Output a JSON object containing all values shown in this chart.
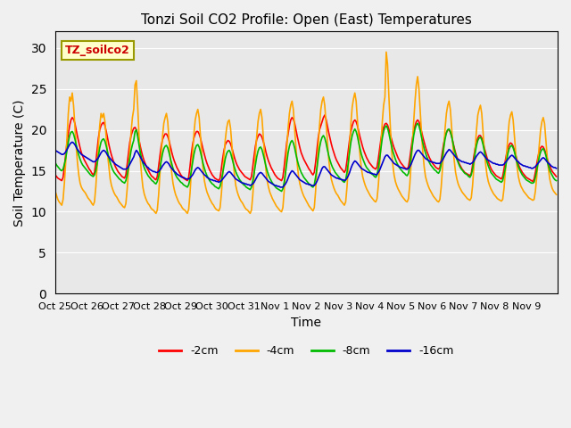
{
  "title": "Tonzi Soil CO2 Profile: Open (East) Temperatures",
  "ylabel": "Soil Temperature (C)",
  "xlabel": "Time",
  "annotation": "TZ_soilco2",
  "ylim": [
    0,
    32
  ],
  "yticks": [
    0,
    5,
    10,
    15,
    20,
    25,
    30
  ],
  "plot_bg_color": "#e8e8e8",
  "fig_bg_color": "#f0f0f0",
  "colors": {
    "-2cm": "#ff0000",
    "-4cm": "#ffa500",
    "-8cm": "#00bb00",
    "-16cm": "#0000cc"
  },
  "legend_labels": [
    "-2cm",
    "-4cm",
    "-8cm",
    "-16cm"
  ],
  "xtick_labels": [
    "Oct 25",
    "Oct 26",
    "Oct 27",
    "Oct 28",
    "Oct 29",
    "Oct 30",
    "Oct 31",
    "Nov 1",
    "Nov 2",
    "Nov 3",
    "Nov 4",
    "Nov 5",
    "Nov 6",
    "Nov 7",
    "Nov 8",
    "Nov 9"
  ],
  "num_points_per_day": 24,
  "days": 16,
  "series": {
    "neg2cm": [
      14.5,
      14.3,
      14.1,
      14.0,
      13.9,
      13.8,
      14.2,
      15.5,
      17.0,
      18.5,
      19.5,
      20.5,
      21.2,
      21.5,
      21.3,
      20.8,
      20.0,
      19.2,
      18.5,
      17.8,
      17.2,
      16.8,
      16.4,
      16.1,
      15.8,
      15.5,
      15.2,
      15.0,
      14.7,
      14.5,
      14.8,
      16.0,
      17.5,
      19.0,
      20.0,
      20.5,
      20.8,
      20.9,
      20.5,
      19.8,
      19.0,
      18.2,
      17.5,
      16.9,
      16.4,
      15.9,
      15.5,
      15.2,
      14.9,
      14.7,
      14.5,
      14.3,
      14.2,
      14.1,
      14.5,
      15.8,
      17.2,
      18.5,
      19.3,
      19.8,
      20.2,
      20.3,
      20.0,
      19.5,
      18.8,
      18.0,
      17.3,
      16.7,
      16.2,
      15.8,
      15.4,
      15.1,
      14.8,
      14.5,
      14.3,
      14.2,
      14.0,
      13.9,
      14.3,
      15.5,
      16.8,
      18.0,
      18.8,
      19.2,
      19.5,
      19.5,
      19.2,
      18.7,
      18.0,
      17.3,
      16.7,
      16.2,
      15.8,
      15.4,
      15.1,
      14.8,
      14.5,
      14.3,
      14.1,
      14.0,
      13.9,
      13.8,
      14.2,
      15.5,
      17.0,
      18.2,
      19.0,
      19.5,
      19.8,
      19.8,
      19.5,
      19.0,
      18.3,
      17.6,
      17.0,
      16.4,
      15.9,
      15.5,
      15.1,
      14.8,
      14.5,
      14.3,
      14.1,
      14.0,
      13.9,
      13.8,
      14.1,
      15.3,
      16.5,
      17.5,
      18.2,
      18.5,
      18.7,
      18.6,
      18.3,
      17.8,
      17.2,
      16.6,
      16.1,
      15.7,
      15.4,
      15.1,
      14.9,
      14.7,
      14.5,
      14.3,
      14.2,
      14.1,
      14.0,
      13.9,
      14.3,
      15.5,
      16.8,
      18.0,
      18.8,
      19.2,
      19.5,
      19.4,
      19.1,
      18.6,
      18.0,
      17.3,
      16.7,
      16.2,
      15.8,
      15.4,
      15.1,
      14.8,
      14.5,
      14.3,
      14.1,
      14.0,
      13.9,
      13.8,
      14.2,
      15.5,
      17.0,
      18.5,
      19.5,
      20.5,
      21.2,
      21.5,
      21.3,
      20.8,
      20.0,
      19.2,
      18.5,
      17.8,
      17.2,
      16.8,
      16.4,
      16.1,
      15.8,
      15.5,
      15.2,
      15.0,
      14.7,
      14.5,
      14.8,
      16.0,
      17.5,
      19.0,
      20.0,
      20.5,
      21.0,
      21.5,
      21.8,
      21.3,
      20.5,
      19.7,
      19.0,
      18.3,
      17.7,
      17.2,
      16.7,
      16.3,
      16.0,
      15.7,
      15.4,
      15.2,
      15.0,
      14.8,
      15.1,
      16.2,
      17.5,
      18.8,
      19.8,
      20.5,
      21.0,
      21.2,
      21.0,
      20.5,
      19.8,
      19.1,
      18.5,
      17.9,
      17.4,
      17.0,
      16.6,
      16.3,
      16.0,
      15.8,
      15.6,
      15.4,
      15.3,
      15.2,
      15.5,
      16.5,
      17.7,
      18.9,
      19.8,
      20.3,
      20.7,
      20.8,
      20.6,
      20.1,
      19.5,
      18.9,
      18.3,
      17.8,
      17.4,
      17.0,
      16.6,
      16.3,
      16.0,
      15.8,
      15.6,
      15.4,
      15.3,
      15.2,
      15.5,
      16.5,
      17.7,
      18.9,
      19.8,
      20.5,
      21.0,
      21.2,
      21.0,
      20.5,
      19.8,
      19.1,
      18.5,
      17.9,
      17.4,
      17.0,
      16.6,
      16.3,
      16.0,
      15.8,
      15.6,
      15.4,
      15.3,
      15.2,
      15.4,
      16.3,
      17.4,
      18.4,
      19.2,
      19.7,
      20.0,
      20.0,
      19.7,
      19.2,
      18.5,
      17.8,
      17.2,
      16.7,
      16.2,
      15.8,
      15.5,
      15.2,
      15.0,
      14.8,
      14.7,
      14.6,
      14.5,
      14.4,
      14.7,
      15.7,
      16.8,
      17.8,
      18.5,
      19.0,
      19.3,
      19.3,
      19.0,
      18.5,
      17.8,
      17.2,
      16.6,
      16.1,
      15.7,
      15.3,
      15.0,
      14.8,
      14.6,
      14.4,
      14.3,
      14.2,
      14.1,
      14.0,
      14.3,
      15.2,
      16.2,
      17.1,
      17.8,
      18.2,
      18.4,
      18.3,
      18.0,
      17.5,
      16.9,
      16.3,
      15.8,
      15.4,
      15.1,
      14.8,
      14.6,
      14.4,
      14.2,
      14.1,
      14.0,
      13.9,
      13.8,
      13.7,
      14.0,
      14.8,
      15.8,
      16.7,
      17.4,
      17.8,
      18.0,
      17.9,
      17.6,
      17.1,
      16.5,
      16.0,
      15.6,
      15.2,
      14.9,
      14.7,
      14.5,
      14.3
    ],
    "neg4cm": [
      12.5,
      12.0,
      11.5,
      11.2,
      11.0,
      10.8,
      11.5,
      13.5,
      16.0,
      19.0,
      22.0,
      24.0,
      23.5,
      24.5,
      23.0,
      20.5,
      18.0,
      16.0,
      14.5,
      13.5,
      13.0,
      12.7,
      12.5,
      12.3,
      12.0,
      11.7,
      11.5,
      11.3,
      11.0,
      10.8,
      11.2,
      13.0,
      15.5,
      18.0,
      20.5,
      22.0,
      21.5,
      22.0,
      21.0,
      19.0,
      17.0,
      15.5,
      14.0,
      13.2,
      12.7,
      12.3,
      12.0,
      11.8,
      11.5,
      11.2,
      11.0,
      10.8,
      10.6,
      10.5,
      11.0,
      12.8,
      15.0,
      17.5,
      19.8,
      21.5,
      22.5,
      25.5,
      26.0,
      23.0,
      19.5,
      16.5,
      14.5,
      13.0,
      12.2,
      11.7,
      11.3,
      11.0,
      10.8,
      10.5,
      10.3,
      10.2,
      10.0,
      9.8,
      10.2,
      12.0,
      14.5,
      17.0,
      19.2,
      20.8,
      21.5,
      22.0,
      21.0,
      18.8,
      16.5,
      14.8,
      13.5,
      12.7,
      12.1,
      11.7,
      11.3,
      11.0,
      10.8,
      10.5,
      10.3,
      10.2,
      10.0,
      9.8,
      10.3,
      12.2,
      14.8,
      17.2,
      19.5,
      21.2,
      22.0,
      22.5,
      21.5,
      19.2,
      17.0,
      15.2,
      13.8,
      13.0,
      12.4,
      12.0,
      11.6,
      11.3,
      11.0,
      10.8,
      10.5,
      10.3,
      10.2,
      10.1,
      10.5,
      12.2,
      14.5,
      16.8,
      18.8,
      20.2,
      21.0,
      21.2,
      20.2,
      18.2,
      16.2,
      14.5,
      13.2,
      12.5,
      12.0,
      11.6,
      11.3,
      11.1,
      10.8,
      10.5,
      10.3,
      10.2,
      10.0,
      9.8,
      10.2,
      12.0,
      14.5,
      17.0,
      19.2,
      21.0,
      22.0,
      22.5,
      21.5,
      19.2,
      17.0,
      15.2,
      13.8,
      13.0,
      12.4,
      12.0,
      11.6,
      11.3,
      11.0,
      10.7,
      10.5,
      10.3,
      10.1,
      10.0,
      10.5,
      12.5,
      15.0,
      17.8,
      20.2,
      22.0,
      23.0,
      23.5,
      22.5,
      20.2,
      17.8,
      15.8,
      14.3,
      13.4,
      12.8,
      12.3,
      11.9,
      11.6,
      11.3,
      11.0,
      10.7,
      10.5,
      10.3,
      10.1,
      10.5,
      12.5,
      15.2,
      18.0,
      20.5,
      22.5,
      23.5,
      24.0,
      23.0,
      20.8,
      18.5,
      16.5,
      15.0,
      14.0,
      13.4,
      12.9,
      12.5,
      12.2,
      12.0,
      11.7,
      11.4,
      11.2,
      11.0,
      10.8,
      11.2,
      13.0,
      15.5,
      18.2,
      20.8,
      22.8,
      23.8,
      24.5,
      23.5,
      21.2,
      18.8,
      16.8,
      15.3,
      14.3,
      13.7,
      13.2,
      12.8,
      12.5,
      12.2,
      11.9,
      11.7,
      11.5,
      11.3,
      11.2,
      11.6,
      13.3,
      15.8,
      18.5,
      21.0,
      23.0,
      24.0,
      29.5,
      28.0,
      24.2,
      20.8,
      17.8,
      15.8,
      14.5,
      13.7,
      13.2,
      12.8,
      12.5,
      12.2,
      11.9,
      11.7,
      11.5,
      11.3,
      11.2,
      11.6,
      13.3,
      15.8,
      18.5,
      21.0,
      23.5,
      25.5,
      26.5,
      25.0,
      22.2,
      19.5,
      17.2,
      15.5,
      14.3,
      13.7,
      13.2,
      12.8,
      12.5,
      12.2,
      11.9,
      11.7,
      11.5,
      11.3,
      11.2,
      11.5,
      13.0,
      15.3,
      17.8,
      20.2,
      22.0,
      23.0,
      23.5,
      22.5,
      20.2,
      18.0,
      16.2,
      14.8,
      14.0,
      13.4,
      13.0,
      12.7,
      12.4,
      12.2,
      12.0,
      11.8,
      11.6,
      11.5,
      11.4,
      11.7,
      13.2,
      15.5,
      17.8,
      20.0,
      21.8,
      22.5,
      23.0,
      22.0,
      19.8,
      17.5,
      15.8,
      14.5,
      13.7,
      13.2,
      12.8,
      12.5,
      12.2,
      12.0,
      11.8,
      11.6,
      11.5,
      11.4,
      11.3,
      11.5,
      12.8,
      14.8,
      17.0,
      19.2,
      21.0,
      21.8,
      22.2,
      21.2,
      19.2,
      17.2,
      15.5,
      14.3,
      13.6,
      13.1,
      12.8,
      12.5,
      12.3,
      12.1,
      11.9,
      11.7,
      11.6,
      11.5,
      11.4,
      11.5,
      12.5,
      14.2,
      16.2,
      18.2,
      20.0,
      21.0,
      21.5,
      20.8,
      18.8,
      16.8,
      15.2,
      14.0,
      13.3,
      12.8,
      12.5,
      12.3,
      12.1
    ],
    "neg8cm": [
      16.0,
      15.7,
      15.5,
      15.3,
      15.1,
      15.0,
      15.2,
      15.8,
      16.5,
      17.5,
      18.5,
      19.3,
      19.7,
      19.8,
      19.5,
      18.9,
      18.2,
      17.5,
      16.9,
      16.4,
      16.0,
      15.7,
      15.5,
      15.3,
      15.1,
      14.9,
      14.7,
      14.5,
      14.4,
      14.3,
      14.5,
      15.0,
      15.8,
      16.8,
      17.8,
      18.5,
      18.8,
      18.9,
      18.6,
      18.0,
      17.3,
      16.6,
      16.0,
      15.5,
      15.1,
      14.8,
      14.6,
      14.4,
      14.2,
      14.0,
      13.9,
      13.7,
      13.6,
      13.5,
      13.8,
      14.5,
      15.5,
      16.5,
      17.5,
      18.2,
      18.7,
      19.8,
      20.0,
      19.2,
      18.2,
      17.3,
      16.5,
      15.9,
      15.4,
      15.0,
      14.7,
      14.4,
      14.2,
      14.0,
      13.8,
      13.7,
      13.5,
      13.4,
      13.7,
      14.3,
      15.2,
      16.2,
      17.1,
      17.7,
      18.0,
      18.1,
      17.8,
      17.2,
      16.5,
      15.9,
      15.3,
      14.9,
      14.5,
      14.2,
      14.0,
      13.8,
      13.6,
      13.5,
      13.3,
      13.2,
      13.1,
      13.0,
      13.3,
      14.0,
      15.0,
      16.0,
      17.0,
      17.7,
      18.1,
      18.2,
      17.9,
      17.3,
      16.6,
      15.9,
      15.3,
      14.8,
      14.4,
      14.1,
      13.8,
      13.6,
      13.4,
      13.3,
      13.1,
      13.0,
      12.9,
      12.8,
      13.1,
      13.8,
      14.7,
      15.6,
      16.5,
      17.1,
      17.4,
      17.5,
      17.2,
      16.6,
      16.0,
      15.4,
      14.9,
      14.5,
      14.2,
      13.9,
      13.7,
      13.5,
      13.3,
      13.2,
      13.0,
      12.9,
      12.8,
      12.7,
      13.0,
      13.8,
      14.7,
      15.7,
      16.7,
      17.4,
      17.8,
      17.9,
      17.6,
      17.0,
      16.3,
      15.6,
      15.0,
      14.5,
      14.1,
      13.8,
      13.5,
      13.3,
      13.1,
      12.9,
      12.8,
      12.7,
      12.6,
      12.5,
      12.8,
      13.6,
      14.7,
      16.0,
      17.2,
      18.0,
      18.5,
      18.7,
      18.4,
      17.8,
      17.0,
      16.3,
      15.7,
      15.2,
      14.8,
      14.5,
      14.2,
      14.0,
      13.8,
      13.6,
      13.4,
      13.3,
      13.1,
      13.0,
      13.3,
      14.2,
      15.3,
      16.6,
      17.8,
      18.6,
      19.1,
      19.3,
      19.0,
      18.4,
      17.6,
      16.9,
      16.3,
      15.8,
      15.4,
      15.1,
      14.8,
      14.6,
      14.4,
      14.2,
      14.0,
      13.9,
      13.7,
      13.6,
      13.9,
      14.8,
      16.0,
      17.3,
      18.5,
      19.3,
      19.8,
      20.1,
      19.8,
      19.2,
      18.4,
      17.7,
      17.0,
      16.5,
      16.1,
      15.7,
      15.4,
      15.2,
      15.0,
      14.8,
      14.6,
      14.5,
      14.3,
      14.2,
      14.5,
      15.4,
      16.5,
      17.8,
      19.0,
      19.8,
      20.3,
      20.5,
      20.2,
      19.6,
      18.8,
      18.1,
      17.4,
      16.9,
      16.4,
      16.0,
      15.7,
      15.4,
      15.2,
      15.0,
      14.8,
      14.7,
      14.5,
      14.4,
      14.7,
      15.6,
      16.8,
      18.1,
      19.3,
      20.1,
      20.6,
      20.8,
      20.5,
      19.9,
      19.1,
      18.4,
      17.7,
      17.2,
      16.7,
      16.3,
      16.0,
      15.7,
      15.5,
      15.3,
      15.1,
      15.0,
      14.8,
      14.7,
      15.0,
      15.8,
      16.8,
      17.9,
      18.9,
      19.6,
      20.0,
      20.1,
      19.8,
      19.2,
      18.4,
      17.6,
      17.0,
      16.4,
      16.0,
      15.6,
      15.3,
      15.1,
      14.9,
      14.7,
      14.6,
      14.5,
      14.3,
      14.2,
      14.5,
      15.2,
      16.2,
      17.2,
      18.1,
      18.7,
      19.0,
      19.1,
      18.8,
      18.2,
      17.4,
      16.7,
      16.1,
      15.6,
      15.2,
      14.8,
      14.6,
      14.4,
      14.2,
      14.0,
      13.9,
      13.8,
      13.7,
      13.6,
      13.8,
      14.5,
      15.3,
      16.2,
      17.1,
      17.7,
      18.0,
      18.1,
      17.8,
      17.3,
      16.6,
      16.0,
      15.5,
      15.1,
      14.8,
      14.5,
      14.3,
      14.1,
      13.9,
      13.8,
      13.7,
      13.6,
      13.5,
      13.5,
      13.6,
      14.2,
      15.0,
      15.9,
      16.7,
      17.3,
      17.6,
      17.7,
      17.4,
      16.9,
      16.2,
      15.6,
      15.1,
      14.7,
      14.4,
      14.1,
      13.9,
      13.8
    ],
    "neg16cm": [
      17.5,
      17.4,
      17.3,
      17.2,
      17.1,
      17.0,
      17.0,
      17.1,
      17.3,
      17.6,
      17.9,
      18.2,
      18.4,
      18.5,
      18.4,
      18.2,
      17.9,
      17.6,
      17.4,
      17.2,
      17.0,
      16.9,
      16.8,
      16.7,
      16.6,
      16.5,
      16.4,
      16.3,
      16.2,
      16.1,
      16.1,
      16.2,
      16.4,
      16.6,
      16.9,
      17.2,
      17.4,
      17.5,
      17.4,
      17.2,
      16.9,
      16.7,
      16.5,
      16.3,
      16.1,
      16.0,
      15.8,
      15.7,
      15.6,
      15.5,
      15.4,
      15.3,
      15.2,
      15.2,
      15.2,
      15.3,
      15.5,
      15.8,
      16.1,
      16.4,
      16.7,
      17.2,
      17.5,
      17.3,
      17.0,
      16.7,
      16.4,
      16.1,
      15.9,
      15.7,
      15.5,
      15.4,
      15.2,
      15.1,
      15.0,
      14.9,
      14.9,
      14.8,
      14.8,
      14.9,
      15.1,
      15.3,
      15.6,
      15.8,
      16.0,
      16.1,
      16.0,
      15.8,
      15.5,
      15.3,
      15.1,
      14.9,
      14.8,
      14.6,
      14.5,
      14.4,
      14.3,
      14.2,
      14.2,
      14.1,
      14.0,
      14.0,
      14.0,
      14.1,
      14.3,
      14.5,
      14.8,
      15.1,
      15.3,
      15.4,
      15.3,
      15.1,
      14.9,
      14.7,
      14.5,
      14.4,
      14.2,
      14.1,
      14.0,
      13.9,
      13.9,
      13.8,
      13.8,
      13.7,
      13.7,
      13.6,
      13.7,
      13.8,
      14.0,
      14.2,
      14.4,
      14.6,
      14.8,
      14.9,
      14.8,
      14.6,
      14.4,
      14.2,
      14.0,
      13.9,
      13.8,
      13.7,
      13.6,
      13.5,
      13.5,
      13.4,
      13.4,
      13.3,
      13.3,
      13.2,
      13.3,
      13.4,
      13.6,
      13.9,
      14.2,
      14.5,
      14.7,
      14.8,
      14.7,
      14.5,
      14.3,
      14.1,
      13.9,
      13.7,
      13.6,
      13.5,
      13.4,
      13.3,
      13.2,
      13.2,
      13.1,
      13.1,
      13.0,
      13.0,
      13.0,
      13.2,
      13.4,
      13.7,
      14.1,
      14.5,
      14.8,
      15.0,
      14.9,
      14.7,
      14.5,
      14.3,
      14.1,
      13.9,
      13.8,
      13.7,
      13.6,
      13.5,
      13.4,
      13.4,
      13.3,
      13.3,
      13.2,
      13.2,
      13.2,
      13.4,
      13.7,
      14.1,
      14.5,
      14.9,
      15.3,
      15.5,
      15.5,
      15.3,
      15.1,
      14.9,
      14.7,
      14.5,
      14.4,
      14.3,
      14.2,
      14.1,
      14.1,
      14.0,
      14.0,
      13.9,
      13.9,
      13.8,
      13.9,
      14.1,
      14.4,
      14.8,
      15.3,
      15.7,
      16.0,
      16.2,
      16.1,
      15.9,
      15.7,
      15.5,
      15.3,
      15.2,
      15.1,
      15.0,
      14.9,
      14.8,
      14.8,
      14.7,
      14.7,
      14.6,
      14.6,
      14.5,
      14.6,
      14.8,
      15.1,
      15.5,
      15.9,
      16.3,
      16.7,
      16.9,
      16.9,
      16.7,
      16.5,
      16.3,
      16.1,
      15.9,
      15.8,
      15.7,
      15.6,
      15.5,
      15.4,
      15.4,
      15.3,
      15.3,
      15.2,
      15.2,
      15.3,
      15.5,
      15.8,
      16.2,
      16.6,
      17.0,
      17.3,
      17.5,
      17.5,
      17.3,
      17.1,
      16.9,
      16.7,
      16.5,
      16.4,
      16.3,
      16.2,
      16.1,
      16.1,
      16.0,
      16.0,
      15.9,
      15.9,
      15.9,
      15.9,
      16.1,
      16.3,
      16.6,
      16.9,
      17.2,
      17.4,
      17.6,
      17.5,
      17.3,
      17.1,
      16.9,
      16.7,
      16.5,
      16.4,
      16.3,
      16.2,
      16.1,
      16.1,
      16.0,
      16.0,
      15.9,
      15.9,
      15.8,
      15.9,
      16.0,
      16.2,
      16.5,
      16.8,
      17.0,
      17.2,
      17.3,
      17.2,
      17.0,
      16.8,
      16.6,
      16.4,
      16.3,
      16.2,
      16.1,
      16.0,
      15.9,
      15.9,
      15.8,
      15.8,
      15.7,
      15.7,
      15.7,
      15.7,
      15.8,
      16.0,
      16.2,
      16.4,
      16.6,
      16.8,
      16.9,
      16.8,
      16.6,
      16.4,
      16.2,
      16.1,
      15.9,
      15.8,
      15.7,
      15.6,
      15.6,
      15.5,
      15.5,
      15.4,
      15.4,
      15.3,
      15.3,
      15.4,
      15.5,
      15.7,
      15.9,
      16.1,
      16.3,
      16.5,
      16.6,
      16.5,
      16.3,
      16.1,
      15.9,
      15.8,
      15.6,
      15.5,
      15.4,
      15.4,
      15.3
    ]
  }
}
